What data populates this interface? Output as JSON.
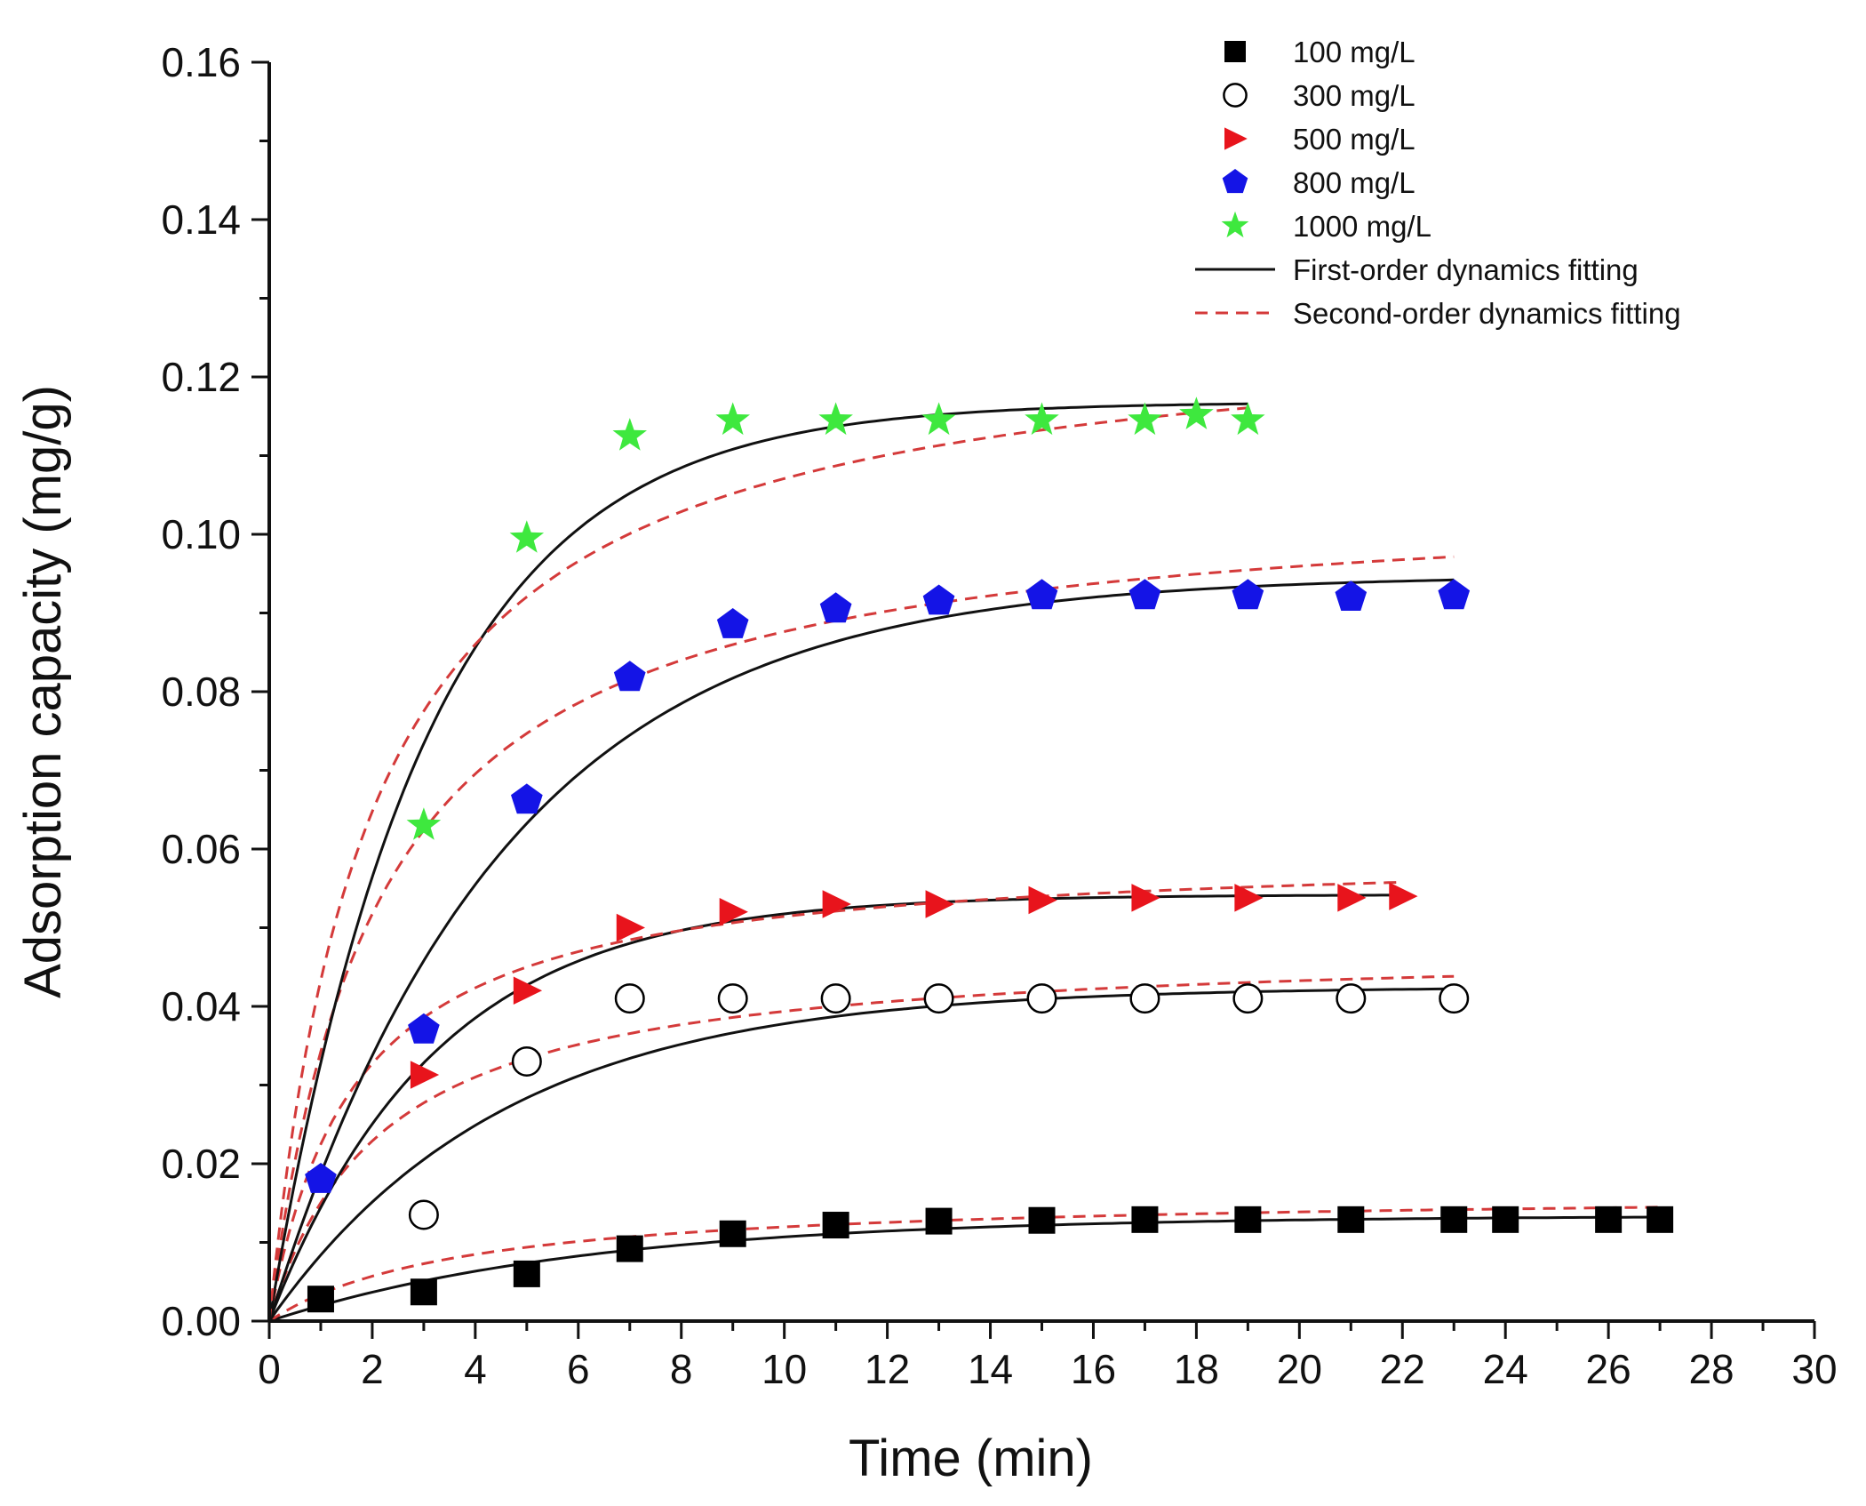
{
  "chart_data": {
    "type": "scatter",
    "xlabel": "Time (min)",
    "ylabel": "Adsorption capacity (mg/g)",
    "xlim": [
      0,
      30
    ],
    "ylim": [
      0,
      0.16
    ],
    "x_ticks": [
      "0",
      "2",
      "4",
      "6",
      "8",
      "10",
      "12",
      "14",
      "16",
      "18",
      "20",
      "22",
      "24",
      "26",
      "28",
      "30"
    ],
    "y_ticks": [
      "0.00",
      "0.02",
      "0.04",
      "0.06",
      "0.08",
      "0.10",
      "0.12",
      "0.14",
      "0.16"
    ],
    "grid": false,
    "legend_position": "top-right",
    "series": [
      {
        "name": "100 mg/L",
        "marker": "square",
        "color": "#000000",
        "x": [
          1,
          3,
          5,
          7,
          9,
          11,
          13,
          15,
          17,
          19,
          21,
          23,
          24,
          26,
          27
        ],
        "y": [
          0.0028,
          0.0037,
          0.006,
          0.0092,
          0.0111,
          0.0122,
          0.0127,
          0.0128,
          0.0129,
          0.0129,
          0.0129,
          0.0129,
          0.0129,
          0.0129,
          0.0129
        ],
        "fit_first_order": {
          "qe": 0.0134,
          "k": 0.16,
          "x_max": 27
        },
        "fit_second_order": {
          "qe": 0.0165,
          "k": 16,
          "x_max": 27
        }
      },
      {
        "name": "300 mg/L",
        "marker": "circle-open",
        "color": "#000000",
        "x": [
          3,
          5,
          7,
          9,
          11,
          13,
          15,
          17,
          19,
          21,
          23
        ],
        "y": [
          0.0135,
          0.033,
          0.041,
          0.041,
          0.041,
          0.041,
          0.041,
          0.041,
          0.041,
          0.041,
          0.041
        ],
        "fit_first_order": {
          "qe": 0.0425,
          "k": 0.22,
          "x_max": 23
        },
        "fit_second_order": {
          "qe": 0.048,
          "k": 9.5,
          "x_max": 23
        }
      },
      {
        "name": "500 mg/L",
        "marker": "triangle-right",
        "color": "#e8141c",
        "x": [
          3,
          5,
          7,
          9,
          11,
          13,
          15,
          17,
          19,
          21,
          22
        ],
        "y": [
          0.0313,
          0.042,
          0.05,
          0.052,
          0.053,
          0.053,
          0.0535,
          0.0538,
          0.0538,
          0.0538,
          0.054
        ],
        "fit_first_order": {
          "qe": 0.0542,
          "k": 0.31,
          "x_max": 22
        },
        "fit_second_order": {
          "qe": 0.06,
          "k": 10,
          "x_max": 22
        }
      },
      {
        "name": "800 mg/L",
        "marker": "pentagon",
        "color": "#1414e6",
        "x": [
          1,
          3,
          5,
          7,
          9,
          11,
          13,
          15,
          17,
          19,
          21,
          23
        ],
        "y": [
          0.018,
          0.037,
          0.0662,
          0.0818,
          0.0885,
          0.0905,
          0.0915,
          0.0922,
          0.0922,
          0.0922,
          0.092,
          0.0922
        ],
        "fit_first_order": {
          "qe": 0.0948,
          "k": 0.22,
          "x_max": 23
        },
        "fit_second_order": {
          "qe": 0.106,
          "k": 4.5,
          "x_max": 23
        }
      },
      {
        "name": "1000 mg/L",
        "marker": "star",
        "color": "#3ee83e",
        "x": [
          3,
          5,
          7,
          9,
          11,
          13,
          15,
          17,
          18,
          19
        ],
        "y": [
          0.063,
          0.0995,
          0.1125,
          0.1145,
          0.1145,
          0.1145,
          0.1145,
          0.1145,
          0.1152,
          0.1145
        ],
        "fit_first_order": {
          "qe": 0.1168,
          "k": 0.33,
          "x_max": 19
        },
        "fit_second_order": {
          "qe": 0.128,
          "k": 4.0,
          "x_max": 19
        }
      }
    ],
    "fit_lines": [
      {
        "name": "First-order dynamics fitting",
        "style": "solid",
        "color": "#111111"
      },
      {
        "name": "Second-order dynamics fitting",
        "style": "dashed",
        "color": "#d43a3a"
      }
    ]
  }
}
